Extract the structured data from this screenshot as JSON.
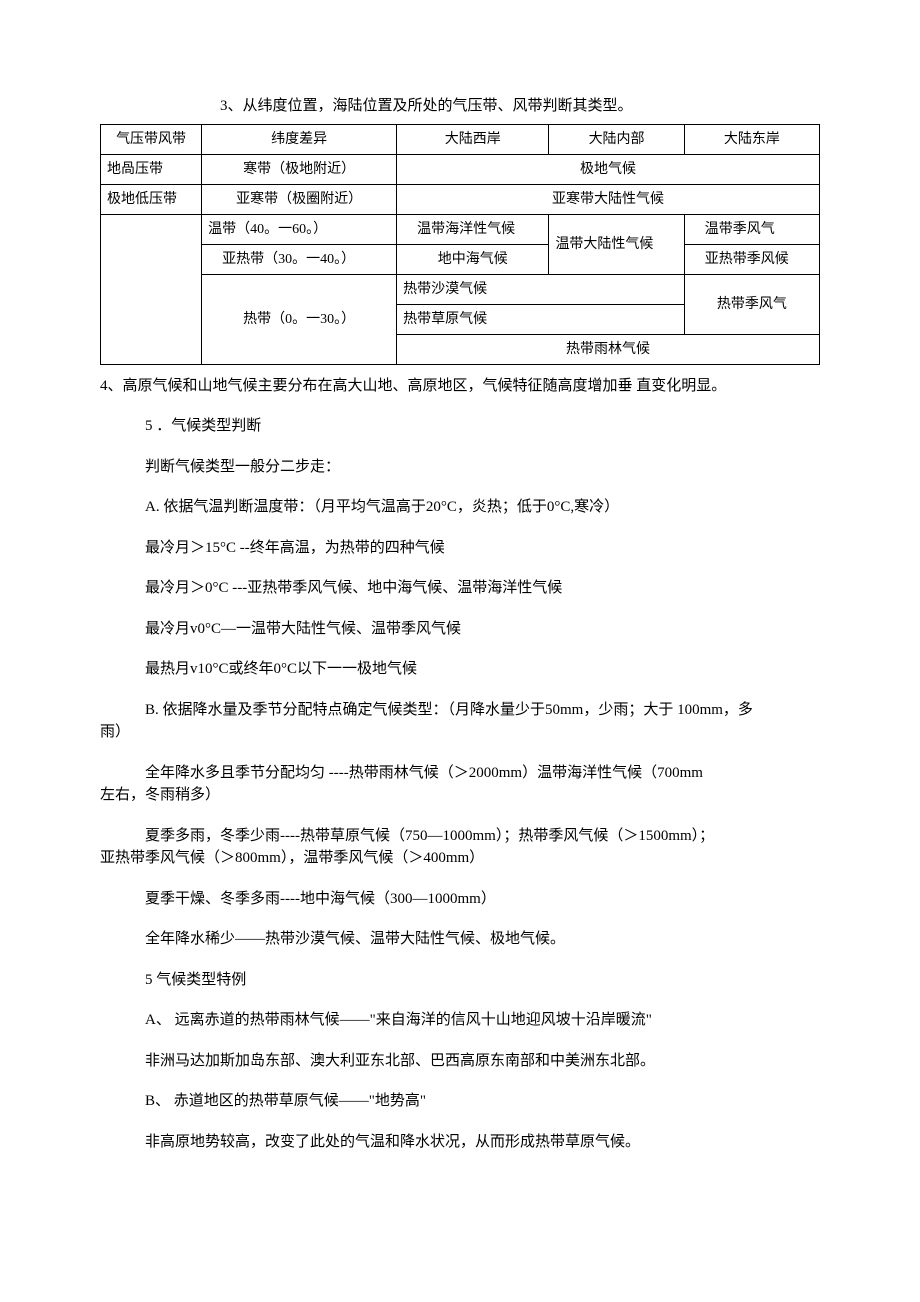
{
  "intro": "3、从纬度位置，海陆位置及所处的气压带、风带判断其类型。",
  "table": {
    "header": [
      "气压带风带",
      "纬度差异",
      "大陆西岸",
      "大陆内部",
      "大陆东岸"
    ],
    "r1": {
      "c1": "地咼压带",
      "c2": "寒带（极地附近）",
      "c3": "极地气候"
    },
    "r2": {
      "c1": "极地低压带",
      "c2": "亚寒带（极圈附近）",
      "c3": "亚寒带大陆性气候"
    },
    "r3": {
      "c2": "温带（40。一60。）",
      "c3": "　温带海洋性气候",
      "c4": "温带大陆性气候",
      "c5": "　温带季风气"
    },
    "r4": {
      "c2": "　亚热带（30。一40。）",
      "c3": "地中海气候",
      "c5": "　亚热带季风候"
    },
    "r5": {
      "c2": "热带（0。一30。）",
      "c3": "热带沙漠气候",
      "c5": "热带季风气"
    },
    "r6": {
      "c3": "热带草原气候"
    },
    "r7": {
      "c3": "热带雨林气候"
    }
  },
  "p4": "4、高原气候和山地气候主要分布在高大山地、高原地区，气候特征随高度增加垂 直变化明显。",
  "p5": "5 ．气候类型判断",
  "p6": "判断气候类型一般分二步走：",
  "p7": "A. 依据气温判断温度带：（月平均气温高于20°C，炎热；低于0°C,寒冷）",
  "p8": "最冷月＞15°C --终年高温，为热带的四种气候",
  "p9": "最冷月＞0°C ---亚热带季风气候、地中海气候、温带海洋性气候",
  "p10": "最冷月v0°C—一温带大陆性气候、温带季风气候",
  "p11": "最热月v10°C或终年0°C以下一一极地气候",
  "p12a": "B. 依据降水量及季节分配特点确定气候类型：（月降水量少于50mm，少雨；大于 100mm，多",
  "p12b": "雨）",
  "p13a": "全年降水多且季节分配均匀 ----热带雨林气候（＞2000mm）温带海洋性气候（700mm",
  "p13b": "左右，冬雨稍多）",
  "p14a": "夏季多雨，冬季少雨----热带草原气候（750—1000mm）；热带季风气候（＞1500mm）；",
  "p14b": "亚热带季风气候（＞800mm），温带季风气候（＞400mm）",
  "p15": "夏季干燥、冬季多雨----地中海气候（300—1000mm）",
  "p16": "全年降水稀少——热带沙漠气候、温带大陆性气候、极地气候。",
  "p17": "5 气候类型特例",
  "p18": "A、 远离赤道的热带雨林气候——\"来自海洋的信风十山地迎风坡十沿岸暖流\"",
  "p19": "非洲马达加斯加岛东部、澳大利亚东北部、巴西高原东南部和中美洲东北部。",
  "p20": "B、 赤道地区的热带草原气候——\"地势高\"",
  "p21": "非高原地势较高，改变了此处的气温和降水状况，从而形成热带草原气候。"
}
